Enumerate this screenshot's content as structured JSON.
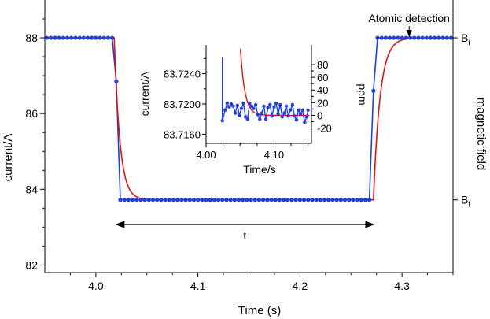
{
  "chart_data": [
    {
      "type": "line",
      "xlabel": "Time (s)",
      "ylabel": "current/A",
      "right_label": "magnetic field",
      "xlim": [
        3.95,
        4.35
      ],
      "ylim": [
        81.8,
        89.0
      ],
      "xticks": [
        4.0,
        4.1,
        4.2,
        4.3
      ],
      "yticks": [
        82,
        84,
        86,
        88
      ],
      "field_levels": [
        {
          "label": "B",
          "sub": "i",
          "y": 88.0
        },
        {
          "label": "B",
          "sub": "f",
          "y": 83.72
        }
      ],
      "annotations": {
        "detection": {
          "text": "Atomic detection",
          "x": 4.307,
          "y": 88.0
        },
        "interval": {
          "text": "t",
          "x_start": 4.02,
          "x_end": 4.272,
          "y": 82.2
        }
      },
      "colors": {
        "measured": "#1f3fe0",
        "fit": "#e01010"
      },
      "series": [
        {
          "kind": "measured",
          "points": [
            [
              3.952,
              88.0
            ],
            [
              3.956,
              88.0
            ],
            [
              3.96,
              88.0
            ],
            [
              3.964,
              88.0
            ],
            [
              3.968,
              88.0
            ],
            [
              3.972,
              88.0
            ],
            [
              3.976,
              88.0
            ],
            [
              3.98,
              88.0
            ],
            [
              3.984,
              88.0
            ],
            [
              3.988,
              88.0
            ],
            [
              3.992,
              88.0
            ],
            [
              3.996,
              88.0
            ],
            [
              4.0,
              88.0
            ],
            [
              4.004,
              88.0
            ],
            [
              4.008,
              88.0
            ],
            [
              4.012,
              88.0
            ],
            [
              4.016,
              88.0
            ],
            [
              4.02,
              86.85
            ],
            [
              4.024,
              83.72
            ],
            [
              4.028,
              83.72
            ],
            [
              4.032,
              83.72
            ],
            [
              4.036,
              83.72
            ],
            [
              4.04,
              83.72
            ],
            [
              4.044,
              83.72
            ],
            [
              4.048,
              83.72
            ],
            [
              4.052,
              83.72
            ],
            [
              4.056,
              83.72
            ],
            [
              4.06,
              83.72
            ],
            [
              4.064,
              83.72
            ],
            [
              4.068,
              83.72
            ],
            [
              4.072,
              83.72
            ],
            [
              4.076,
              83.72
            ],
            [
              4.08,
              83.72
            ],
            [
              4.084,
              83.72
            ],
            [
              4.088,
              83.72
            ],
            [
              4.092,
              83.72
            ],
            [
              4.096,
              83.72
            ],
            [
              4.1,
              83.72
            ],
            [
              4.104,
              83.72
            ],
            [
              4.108,
              83.72
            ],
            [
              4.112,
              83.72
            ],
            [
              4.116,
              83.72
            ],
            [
              4.12,
              83.72
            ],
            [
              4.124,
              83.72
            ],
            [
              4.128,
              83.72
            ],
            [
              4.132,
              83.72
            ],
            [
              4.136,
              83.72
            ],
            [
              4.14,
              83.72
            ],
            [
              4.144,
              83.72
            ],
            [
              4.148,
              83.72
            ],
            [
              4.152,
              83.72
            ],
            [
              4.156,
              83.72
            ],
            [
              4.16,
              83.72
            ],
            [
              4.164,
              83.72
            ],
            [
              4.168,
              83.72
            ],
            [
              4.172,
              83.72
            ],
            [
              4.176,
              83.72
            ],
            [
              4.18,
              83.72
            ],
            [
              4.184,
              83.72
            ],
            [
              4.188,
              83.72
            ],
            [
              4.192,
              83.72
            ],
            [
              4.196,
              83.72
            ],
            [
              4.2,
              83.72
            ],
            [
              4.204,
              83.72
            ],
            [
              4.208,
              83.72
            ],
            [
              4.212,
              83.72
            ],
            [
              4.216,
              83.72
            ],
            [
              4.22,
              83.72
            ],
            [
              4.224,
              83.72
            ],
            [
              4.228,
              83.72
            ],
            [
              4.232,
              83.72
            ],
            [
              4.236,
              83.72
            ],
            [
              4.24,
              83.72
            ],
            [
              4.244,
              83.72
            ],
            [
              4.248,
              83.72
            ],
            [
              4.252,
              83.72
            ],
            [
              4.256,
              83.72
            ],
            [
              4.26,
              83.72
            ],
            [
              4.264,
              83.72
            ],
            [
              4.268,
              83.72
            ],
            [
              4.272,
              86.6
            ],
            [
              4.276,
              88.0
            ],
            [
              4.28,
              88.0
            ],
            [
              4.284,
              88.0
            ],
            [
              4.288,
              88.0
            ],
            [
              4.292,
              88.0
            ],
            [
              4.296,
              88.0
            ],
            [
              4.3,
              88.0
            ],
            [
              4.304,
              88.0
            ],
            [
              4.308,
              88.0
            ],
            [
              4.312,
              88.0
            ],
            [
              4.316,
              88.0
            ],
            [
              4.32,
              88.0
            ],
            [
              4.324,
              88.0
            ],
            [
              4.328,
              88.0
            ],
            [
              4.332,
              88.0
            ],
            [
              4.336,
              88.0
            ],
            [
              4.34,
              88.0
            ],
            [
              4.344,
              88.0
            ],
            [
              4.348,
              88.0
            ]
          ]
        },
        {
          "kind": "fit",
          "model": {
            "t1": 4.018,
            "t2": 4.272,
            "tau_down": 0.0055,
            "tau_up": 0.0065,
            "high": 88.0,
            "low": 83.72
          }
        }
      ]
    },
    {
      "type": "line",
      "inset": true,
      "xlabel": "Time/s",
      "ylabel": "current/A",
      "right_label": "ppm",
      "xlim": [
        4.0,
        4.155
      ],
      "ylim": [
        83.7148,
        83.7278
      ],
      "xticks": [
        4.0,
        4.1
      ],
      "xtick_labels": [
        "4.00",
        "4.10"
      ],
      "minor_xticks": [
        4.025,
        4.05,
        4.075,
        4.125,
        4.15
      ],
      "yticks": [
        83.716,
        83.72,
        83.724
      ],
      "ytick_labels": [
        "83.7160",
        "83.7200",
        "83.7240"
      ],
      "right_ticks": [
        -20,
        0,
        20,
        40,
        60,
        80
      ],
      "right_scale": {
        "ref_current": 83.7185,
        "a_per_ppm": 8.37e-05
      },
      "series": [
        {
          "kind": "measured",
          "spike": {
            "x": 4.024,
            "y": 83.7262
          },
          "points": [
            [
              4.024,
              83.7178
            ],
            [
              4.028,
              83.7192
            ],
            [
              4.031,
              83.7201
            ],
            [
              4.034,
              83.7196
            ],
            [
              4.037,
              83.72
            ],
            [
              4.04,
              83.7197
            ],
            [
              4.043,
              83.7188
            ],
            [
              4.046,
              83.7198
            ],
            [
              4.049,
              83.7185
            ],
            [
              4.052,
              83.7194
            ],
            [
              4.055,
              83.7201
            ],
            [
              4.058,
              83.7183
            ],
            [
              4.061,
              83.718
            ],
            [
              4.064,
              83.7201
            ],
            [
              4.067,
              83.7197
            ],
            [
              4.07,
              83.7194
            ],
            [
              4.073,
              83.7199
            ],
            [
              4.076,
              83.7186
            ],
            [
              4.079,
              83.718
            ],
            [
              4.082,
              83.7188
            ],
            [
              4.085,
              83.7197
            ],
            [
              4.088,
              83.718
            ],
            [
              4.091,
              83.7195
            ],
            [
              4.094,
              83.7199
            ],
            [
              4.097,
              83.7184
            ],
            [
              4.1,
              83.7196
            ],
            [
              4.103,
              83.7201
            ],
            [
              4.106,
              83.7187
            ],
            [
              4.109,
              83.7199
            ],
            [
              4.112,
              83.7183
            ],
            [
              4.115,
              83.7188
            ],
            [
              4.118,
              83.7197
            ],
            [
              4.121,
              83.7184
            ],
            [
              4.124,
              83.7192
            ],
            [
              4.127,
              83.7199
            ],
            [
              4.13,
              83.7184
            ],
            [
              4.133,
              83.7179
            ],
            [
              4.136,
              83.7192
            ],
            [
              4.139,
              83.7187
            ],
            [
              4.142,
              83.7192
            ],
            [
              4.145,
              83.7176
            ],
            [
              4.148,
              83.7183
            ],
            [
              4.15,
              83.7192
            ]
          ]
        },
        {
          "kind": "fit",
          "model": {
            "t0": 4.0505,
            "base": 83.7185,
            "amp": 0.0088,
            "tau": 0.0065
          }
        }
      ]
    }
  ]
}
